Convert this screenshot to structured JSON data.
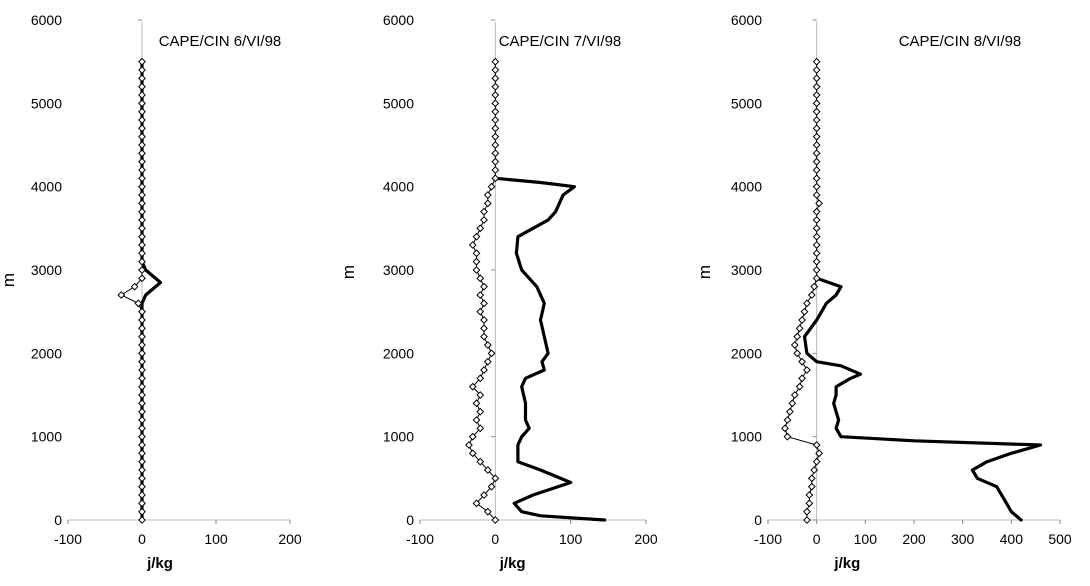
{
  "chart_data": [
    {
      "type": "line",
      "title": "CAPE/CIN 6/VI/98",
      "xlabel": "j/kg",
      "ylabel": "m",
      "xlim": [
        -100,
        200
      ],
      "ylim": [
        0,
        6000
      ],
      "xticks": [
        "-100",
        "0",
        "100",
        "200"
      ],
      "yticks": [
        "0",
        "1000",
        "2000",
        "3000",
        "4000",
        "5000",
        "6000"
      ],
      "grid": false,
      "series": [
        {
          "style": "thick-line",
          "points": [
            [
              0,
              0
            ],
            [
              0,
              2600
            ],
            [
              5,
              2700
            ],
            [
              25,
              2850
            ],
            [
              5,
              3000
            ],
            [
              0,
              3100
            ],
            [
              0,
              5500
            ]
          ]
        },
        {
          "style": "diamond-markers",
          "points": [
            [
              0,
              0
            ],
            [
              0,
              100
            ],
            [
              0,
              200
            ],
            [
              0,
              300
            ],
            [
              0,
              400
            ],
            [
              0,
              500
            ],
            [
              0,
              600
            ],
            [
              0,
              700
            ],
            [
              0,
              800
            ],
            [
              0,
              900
            ],
            [
              0,
              1000
            ],
            [
              0,
              1100
            ],
            [
              0,
              1200
            ],
            [
              0,
              1300
            ],
            [
              0,
              1400
            ],
            [
              0,
              1500
            ],
            [
              0,
              1600
            ],
            [
              0,
              1700
            ],
            [
              0,
              1800
            ],
            [
              0,
              1900
            ],
            [
              0,
              2000
            ],
            [
              0,
              2100
            ],
            [
              0,
              2200
            ],
            [
              0,
              2300
            ],
            [
              0,
              2400
            ],
            [
              0,
              2500
            ],
            [
              -5,
              2600
            ],
            [
              -28,
              2700
            ],
            [
              -10,
              2800
            ],
            [
              0,
              2900
            ],
            [
              0,
              3000
            ],
            [
              0,
              3100
            ],
            [
              0,
              3200
            ],
            [
              0,
              3300
            ],
            [
              0,
              3400
            ],
            [
              0,
              3500
            ],
            [
              0,
              3600
            ],
            [
              0,
              3700
            ],
            [
              0,
              3800
            ],
            [
              0,
              3900
            ],
            [
              0,
              4000
            ],
            [
              0,
              4100
            ],
            [
              0,
              4200
            ],
            [
              0,
              4300
            ],
            [
              0,
              4400
            ],
            [
              0,
              4500
            ],
            [
              0,
              4600
            ],
            [
              0,
              4700
            ],
            [
              0,
              4800
            ],
            [
              0,
              4900
            ],
            [
              0,
              5000
            ],
            [
              0,
              5100
            ],
            [
              0,
              5200
            ],
            [
              0,
              5300
            ],
            [
              0,
              5400
            ],
            [
              0,
              5500
            ]
          ]
        }
      ]
    },
    {
      "type": "line",
      "title": "CAPE/CIN 7/VI/98",
      "xlabel": "j/kg",
      "ylabel": "m",
      "xlim": [
        -100,
        200
      ],
      "ylim": [
        0,
        6000
      ],
      "xticks": [
        "-100",
        "0",
        "100",
        "200"
      ],
      "yticks": [
        "0",
        "1000",
        "2000",
        "3000",
        "4000",
        "5000",
        "6000"
      ],
      "grid": false,
      "series": [
        {
          "style": "thick-line",
          "points": [
            [
              145,
              0
            ],
            [
              60,
              50
            ],
            [
              35,
              100
            ],
            [
              25,
              200
            ],
            [
              50,
              300
            ],
            [
              100,
              450
            ],
            [
              60,
              600
            ],
            [
              30,
              700
            ],
            [
              30,
              900
            ],
            [
              35,
              1000
            ],
            [
              45,
              1100
            ],
            [
              40,
              1200
            ],
            [
              40,
              1400
            ],
            [
              35,
              1600
            ],
            [
              40,
              1700
            ],
            [
              65,
              1800
            ],
            [
              62,
              1900
            ],
            [
              70,
              2000
            ],
            [
              65,
              2200
            ],
            [
              60,
              2400
            ],
            [
              65,
              2600
            ],
            [
              55,
              2800
            ],
            [
              45,
              2900
            ],
            [
              35,
              3000
            ],
            [
              28,
              3200
            ],
            [
              30,
              3400
            ],
            [
              50,
              3500
            ],
            [
              70,
              3600
            ],
            [
              80,
              3700
            ],
            [
              90,
              3900
            ],
            [
              105,
              4000
            ],
            [
              60,
              4050
            ],
            [
              0,
              4100
            ]
          ]
        },
        {
          "style": "diamond-markers",
          "points": [
            [
              0,
              0
            ],
            [
              -10,
              100
            ],
            [
              -25,
              200
            ],
            [
              -15,
              300
            ],
            [
              -5,
              400
            ],
            [
              0,
              500
            ],
            [
              -10,
              600
            ],
            [
              -20,
              700
            ],
            [
              -30,
              800
            ],
            [
              -35,
              900
            ],
            [
              -30,
              1000
            ],
            [
              -20,
              1100
            ],
            [
              -25,
              1200
            ],
            [
              -20,
              1300
            ],
            [
              -25,
              1400
            ],
            [
              -20,
              1500
            ],
            [
              -30,
              1600
            ],
            [
              -20,
              1700
            ],
            [
              -15,
              1800
            ],
            [
              -10,
              1900
            ],
            [
              -5,
              2000
            ],
            [
              -10,
              2100
            ],
            [
              -15,
              2200
            ],
            [
              -15,
              2300
            ],
            [
              -15,
              2400
            ],
            [
              -20,
              2500
            ],
            [
              -15,
              2600
            ],
            [
              -20,
              2700
            ],
            [
              -15,
              2800
            ],
            [
              -20,
              2900
            ],
            [
              -25,
              3000
            ],
            [
              -25,
              3100
            ],
            [
              -25,
              3200
            ],
            [
              -30,
              3300
            ],
            [
              -25,
              3400
            ],
            [
              -20,
              3500
            ],
            [
              -15,
              3600
            ],
            [
              -15,
              3700
            ],
            [
              -10,
              3800
            ],
            [
              -10,
              3900
            ],
            [
              -5,
              4000
            ],
            [
              0,
              4100
            ],
            [
              0,
              4200
            ],
            [
              0,
              4300
            ],
            [
              0,
              4400
            ],
            [
              0,
              4500
            ],
            [
              0,
              4600
            ],
            [
              0,
              4700
            ],
            [
              0,
              4800
            ],
            [
              0,
              4900
            ],
            [
              0,
              5000
            ],
            [
              0,
              5100
            ],
            [
              0,
              5200
            ],
            [
              0,
              5300
            ],
            [
              0,
              5400
            ],
            [
              0,
              5500
            ]
          ]
        }
      ]
    },
    {
      "type": "line",
      "title": "CAPE/CIN 8/VI/98",
      "xlabel": "j/kg",
      "ylabel": "m",
      "xlim": [
        -100,
        500
      ],
      "ylim": [
        0,
        6000
      ],
      "xticks": [
        "-100",
        "0",
        "100",
        "200",
        "300",
        "400",
        "500"
      ],
      "yticks": [
        "0",
        "1000",
        "2000",
        "3000",
        "4000",
        "5000",
        "6000"
      ],
      "grid": false,
      "series": [
        {
          "style": "thick-line",
          "points": [
            [
              420,
              0
            ],
            [
              400,
              100
            ],
            [
              390,
              200
            ],
            [
              370,
              400
            ],
            [
              330,
              500
            ],
            [
              320,
              600
            ],
            [
              350,
              700
            ],
            [
              400,
              800
            ],
            [
              460,
              900
            ],
            [
              200,
              950
            ],
            [
              50,
              1000
            ],
            [
              40,
              1100
            ],
            [
              45,
              1200
            ],
            [
              40,
              1300
            ],
            [
              35,
              1400
            ],
            [
              40,
              1500
            ],
            [
              40,
              1600
            ],
            [
              70,
              1700
            ],
            [
              90,
              1750
            ],
            [
              50,
              1850
            ],
            [
              0,
              1900
            ],
            [
              -20,
              2000
            ],
            [
              -25,
              2200
            ],
            [
              0,
              2400
            ],
            [
              20,
              2600
            ],
            [
              40,
              2700
            ],
            [
              50,
              2800
            ],
            [
              0,
              2900
            ]
          ]
        },
        {
          "style": "diamond-markers",
          "points": [
            [
              -20,
              0
            ],
            [
              -20,
              100
            ],
            [
              -15,
              200
            ],
            [
              -15,
              300
            ],
            [
              -10,
              400
            ],
            [
              -10,
              500
            ],
            [
              -5,
              600
            ],
            [
              0,
              700
            ],
            [
              5,
              800
            ],
            [
              0,
              900
            ],
            [
              -60,
              1000
            ],
            [
              -65,
              1100
            ],
            [
              -60,
              1200
            ],
            [
              -55,
              1300
            ],
            [
              -50,
              1400
            ],
            [
              -45,
              1500
            ],
            [
              -35,
              1600
            ],
            [
              -30,
              1700
            ],
            [
              -20,
              1800
            ],
            [
              -30,
              1900
            ],
            [
              -40,
              2000
            ],
            [
              -45,
              2100
            ],
            [
              -40,
              2200
            ],
            [
              -35,
              2300
            ],
            [
              -30,
              2400
            ],
            [
              -25,
              2500
            ],
            [
              -20,
              2600
            ],
            [
              -10,
              2700
            ],
            [
              -5,
              2800
            ],
            [
              0,
              2900
            ],
            [
              0,
              3000
            ],
            [
              0,
              3100
            ],
            [
              0,
              3200
            ],
            [
              0,
              3300
            ],
            [
              0,
              3400
            ],
            [
              0,
              3500
            ],
            [
              0,
              3600
            ],
            [
              0,
              3700
            ],
            [
              5,
              3800
            ],
            [
              0,
              3900
            ],
            [
              0,
              4000
            ],
            [
              0,
              4100
            ],
            [
              0,
              4200
            ],
            [
              0,
              4300
            ],
            [
              0,
              4400
            ],
            [
              0,
              4500
            ],
            [
              0,
              4600
            ],
            [
              0,
              4700
            ],
            [
              0,
              4800
            ],
            [
              0,
              4900
            ],
            [
              0,
              5000
            ],
            [
              0,
              5100
            ],
            [
              0,
              5200
            ],
            [
              0,
              5300
            ],
            [
              0,
              5400
            ],
            [
              0,
              5500
            ]
          ]
        }
      ]
    }
  ]
}
